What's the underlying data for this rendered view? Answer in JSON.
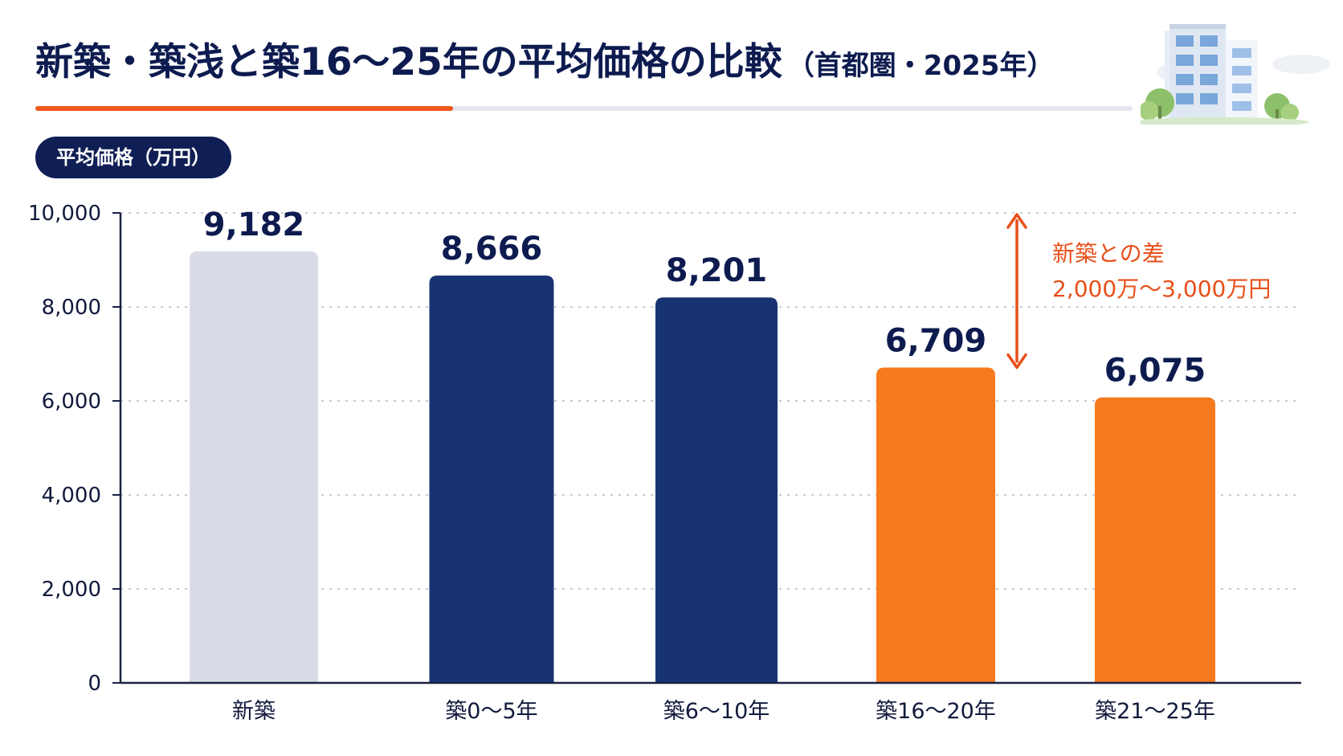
{
  "title": {
    "main": "新築・築浅と築16〜25年の平均価格の比較",
    "sub": "（首都圏・2025年）"
  },
  "y_axis_label": "平均価格（万円）",
  "annotation": {
    "line1": "新築との差",
    "line2": "2,000万〜3,000万円"
  },
  "colors": {
    "new": "#d9dbe6",
    "young": "#173372",
    "older": "#f77a1f",
    "accent": "#e8501a",
    "navy": "#0f1f55"
  },
  "chart_data": {
    "type": "bar",
    "categories": [
      "新築",
      "築0〜5年",
      "築6〜10年",
      "築16〜20年",
      "築21〜25年"
    ],
    "values": [
      9182,
      8666,
      8201,
      6709,
      6075
    ],
    "value_labels": [
      "9,182",
      "8,666",
      "8,201",
      "6,709",
      "6,075"
    ],
    "bar_colors": [
      "#d9dbe6",
      "#173372",
      "#173372",
      "#f77a1f",
      "#f77a1f"
    ],
    "ylim": [
      0,
      10000
    ],
    "yticks": [
      0,
      2000,
      4000,
      6000,
      8000,
      10000
    ],
    "ytick_labels": [
      "0",
      "2,000",
      "4,000",
      "6,000",
      "8,000",
      "10,000"
    ],
    "grid": "dotted horizontal",
    "ylabel": "平均価格（万円）",
    "annotation_range": [
      6709,
      10000
    ]
  }
}
